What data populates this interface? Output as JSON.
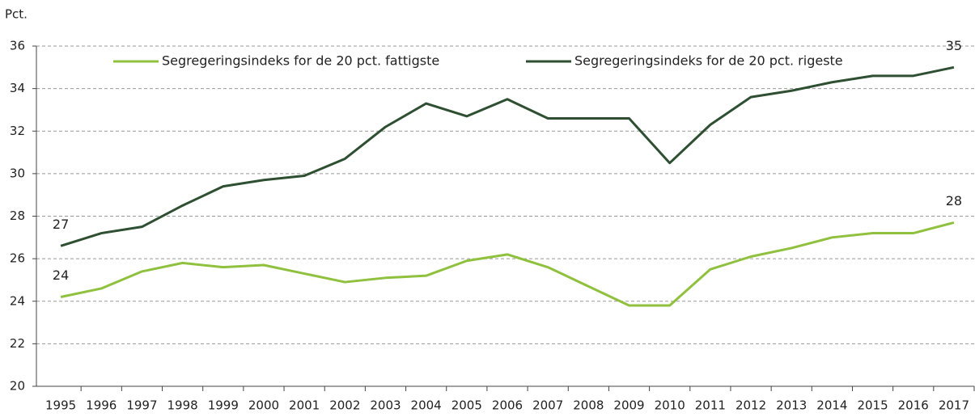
{
  "chart_data": {
    "type": "line",
    "y_axis_label": "Pct.",
    "categories": [
      "1995",
      "1996",
      "1997",
      "1998",
      "1999",
      "2000",
      "2001",
      "2002",
      "2003",
      "2004",
      "2005",
      "2006",
      "2007",
      "2008",
      "2009",
      "2010",
      "2011",
      "2012",
      "2013",
      "2014",
      "2015",
      "2016",
      "2017"
    ],
    "series": [
      {
        "name": "Segregeringsindeks for de 20 pct. fattigste",
        "color": "#8fc13e",
        "values": [
          24.2,
          24.6,
          25.4,
          25.8,
          25.6,
          25.7,
          25.3,
          24.9,
          25.1,
          25.2,
          25.9,
          26.2,
          25.6,
          24.7,
          23.8,
          23.8,
          25.5,
          26.1,
          26.5,
          27.0,
          27.2,
          27.2,
          27.7
        ],
        "value_labels": [
          "24",
          null,
          null,
          null,
          null,
          null,
          null,
          null,
          null,
          null,
          null,
          null,
          null,
          null,
          null,
          null,
          null,
          null,
          null,
          null,
          null,
          null,
          "28"
        ]
      },
      {
        "name": "Segregeringsindeks for de 20 pct. rigeste",
        "color": "#2e4f31",
        "values": [
          26.6,
          27.2,
          27.5,
          28.5,
          29.4,
          29.7,
          29.9,
          30.7,
          32.2,
          33.3,
          32.7,
          33.5,
          32.6,
          32.6,
          32.6,
          30.5,
          32.3,
          33.6,
          33.9,
          34.3,
          34.6,
          34.6,
          35.0
        ],
        "value_labels": [
          "27",
          null,
          null,
          null,
          null,
          null,
          null,
          null,
          null,
          null,
          null,
          null,
          null,
          null,
          null,
          null,
          null,
          null,
          null,
          null,
          null,
          null,
          "35"
        ]
      }
    ],
    "ylim": [
      20,
      36
    ],
    "yticks": [
      20,
      22,
      24,
      26,
      28,
      30,
      32,
      34,
      36
    ],
    "grid": true,
    "legend": "top"
  }
}
